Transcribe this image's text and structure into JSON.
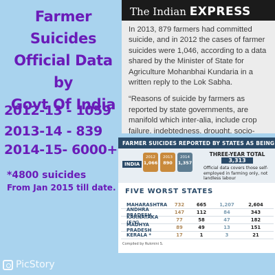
{
  "headline": {
    "line1": "Farmer Suicides",
    "line2": "Official Data by",
    "line3": "Govt Of India"
  },
  "stats": [
    {
      "text": "2012-13 - 1059"
    },
    {
      "text": "2013-14 - 839"
    },
    {
      "text": "2014-15- 6000+"
    }
  ],
  "note": {
    "line1": "*4800 suicides",
    "line2": "From Jan 2015 till date."
  },
  "news": {
    "masthead_the": "The Indian",
    "masthead_express": "EXPRESS",
    "para1": "In 2013, 879 farmers had committed suicide, and in 2012 the cases of farmer suicides were 1,046, according to a data shared by the Minister of State for Agriculture Mohanbhai Kundaria in a written reply to the Lok Sabha.",
    "para2": "“Reasons of suicide by farmers as reported by state governments, are manifold which inter-alia, include crop failure, indebtedness, drought, socio-"
  },
  "table": {
    "header": "FARMER SUICIDES REPORTED BY STATES AS BEING FOR",
    "india_label": "INDIA",
    "years": [
      {
        "year": "2012",
        "value": "1,066"
      },
      {
        "year": "2013",
        "value": "890"
      },
      {
        "year": "2014",
        "value": "1,357"
      }
    ],
    "three_year_title": "THREE-YEAR TOTAL",
    "three_year_total": "3,313",
    "three_year_desc": "Official data covers those self-employed in farming only, not landless labour",
    "five_worst_title": "FIVE WORST STATES",
    "rows": [
      {
        "state": "MAHARASHTRA",
        "c1": "732",
        "c2": "665",
        "c3": "1,207",
        "c4": "2,604"
      },
      {
        "state": "ANDHRA PRADESH",
        "c1": "147",
        "c2": "112",
        "c3": "84",
        "c4": "343"
      },
      {
        "state": "KARNATAKA (F/Y)",
        "c1": "77",
        "c2": "58",
        "c3": "47",
        "c4": "182"
      },
      {
        "state": "MADHYA PRADESH",
        "c1": "89",
        "c2": "49",
        "c3": "13",
        "c4": "151"
      },
      {
        "state": "KERALA *",
        "c1": "17",
        "c2": "1",
        "c3": "3",
        "c4": "21"
      }
    ],
    "compiled": "Compiled by Rukmini S."
  },
  "watermark": {
    "text": "PicStory",
    "icon": "camera-icon"
  }
}
